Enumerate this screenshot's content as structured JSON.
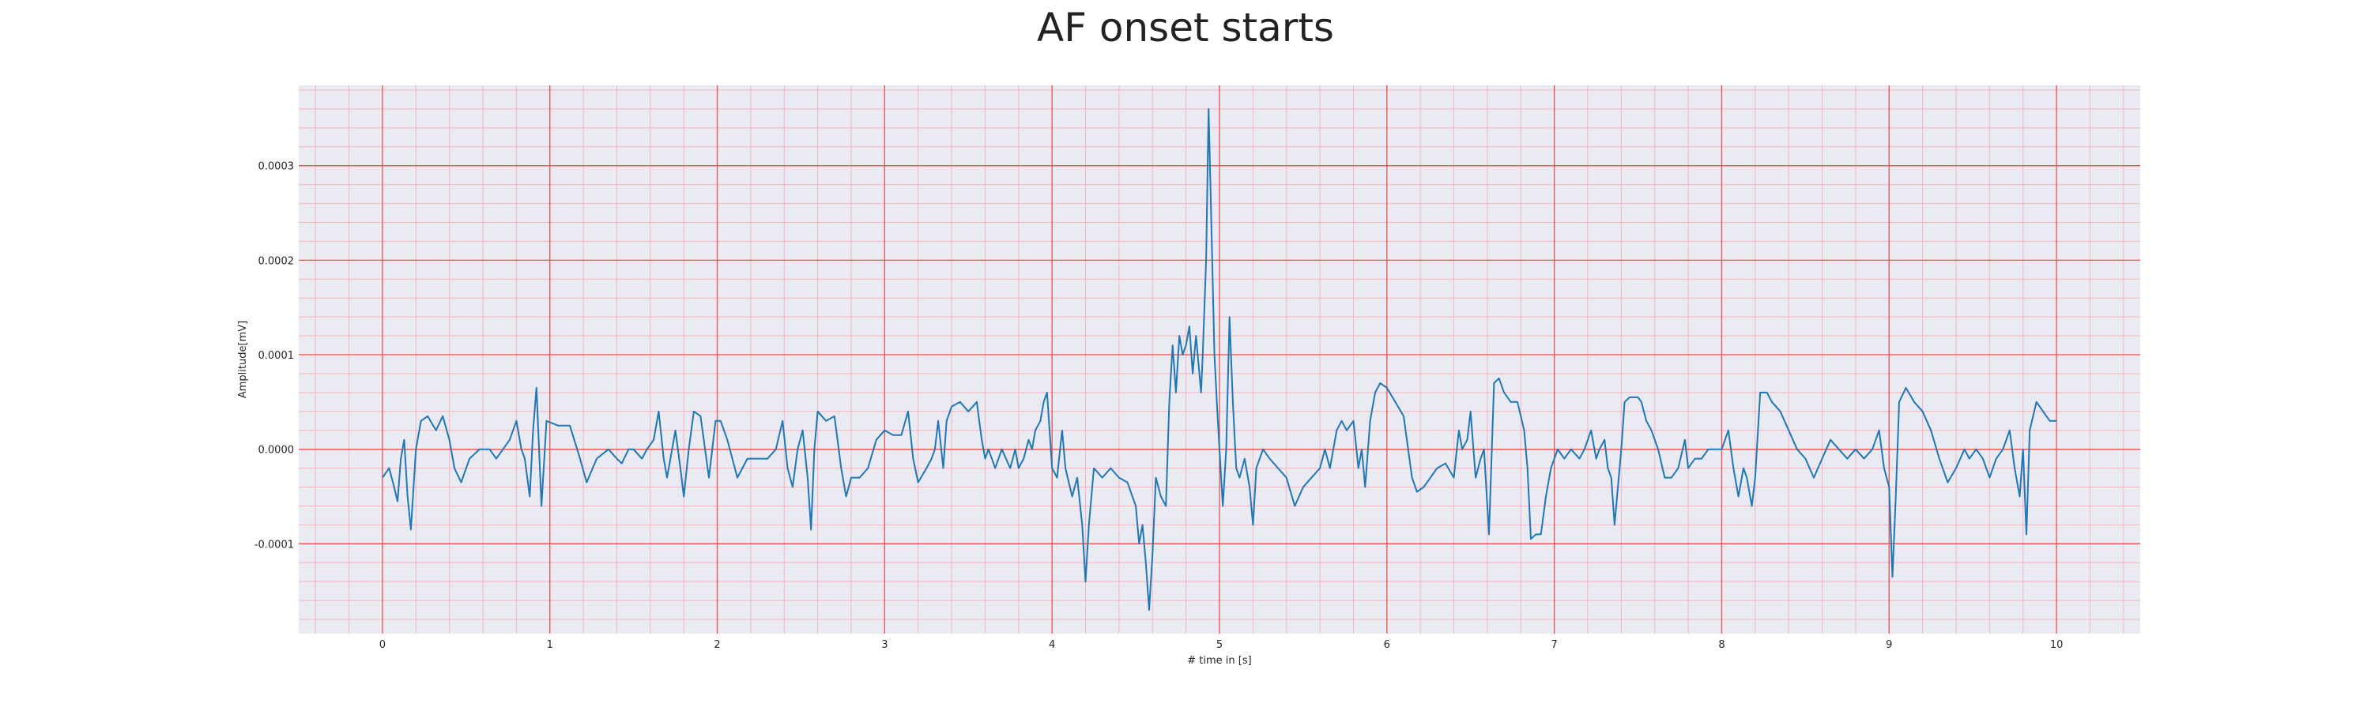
{
  "chart_data": {
    "type": "line",
    "title": "AF onset starts",
    "xlabel": "# time in [s]",
    "ylabel": "Amplitude[mV]",
    "xlim": [
      -0.5,
      10.5
    ],
    "ylim": [
      -0.000195,
      0.000385
    ],
    "xticks": [
      0,
      1,
      2,
      3,
      4,
      5,
      6,
      7,
      8,
      9,
      10
    ],
    "xtick_labels": [
      "0",
      "1",
      "2",
      "3",
      "4",
      "5",
      "6",
      "7",
      "8",
      "9",
      "10"
    ],
    "yticks": [
      -0.0001,
      0.0,
      0.0001,
      0.0002,
      0.0003
    ],
    "ytick_labels": [
      "-0.0001",
      "0.0000",
      "0.0001",
      "0.0002",
      "0.0003"
    ],
    "grid": true,
    "minor_grid": true,
    "colors": {
      "line": "#1f77b4",
      "major_grid": "#e8534f",
      "minor_grid": "#f2b5c0",
      "plot_background": "#eaeaf2"
    },
    "series": [
      {
        "points": [
          [
            0.0,
            -3e-05
          ],
          [
            0.04,
            -2e-05
          ],
          [
            0.07,
            -4e-05
          ],
          [
            0.09,
            -5.5e-05
          ],
          [
            0.11,
            -1e-05
          ],
          [
            0.13,
            1e-05
          ],
          [
            0.15,
            -5e-05
          ],
          [
            0.17,
            -8.5e-05
          ],
          [
            0.2,
            0.0
          ],
          [
            0.23,
            3e-05
          ],
          [
            0.27,
            3.5e-05
          ],
          [
            0.32,
            2e-05
          ],
          [
            0.36,
            3.5e-05
          ],
          [
            0.4,
            1e-05
          ],
          [
            0.43,
            -2e-05
          ],
          [
            0.47,
            -3.5e-05
          ],
          [
            0.52,
            -1e-05
          ],
          [
            0.58,
            0.0
          ],
          [
            0.64,
            0.0
          ],
          [
            0.68,
            -1e-05
          ],
          [
            0.72,
            0.0
          ],
          [
            0.76,
            1e-05
          ],
          [
            0.8,
            3e-05
          ],
          [
            0.83,
            0.0
          ],
          [
            0.85,
            -1e-05
          ],
          [
            0.88,
            -5e-05
          ],
          [
            0.9,
            2e-05
          ],
          [
            0.92,
            6.5e-05
          ],
          [
            0.95,
            -6e-05
          ],
          [
            0.98,
            3e-05
          ],
          [
            1.05,
            2.5e-05
          ],
          [
            1.12,
            2.5e-05
          ],
          [
            1.18,
            -1e-05
          ],
          [
            1.22,
            -3.5e-05
          ],
          [
            1.28,
            -1e-05
          ],
          [
            1.35,
            0.0
          ],
          [
            1.4,
            -1e-05
          ],
          [
            1.43,
            -1.5e-05
          ],
          [
            1.47,
            0.0
          ],
          [
            1.5,
            0.0
          ],
          [
            1.55,
            -1e-05
          ],
          [
            1.58,
            0.0
          ],
          [
            1.62,
            1e-05
          ],
          [
            1.65,
            4e-05
          ],
          [
            1.68,
            -1e-05
          ],
          [
            1.7,
            -3e-05
          ],
          [
            1.73,
            0.0
          ],
          [
            1.75,
            2e-05
          ],
          [
            1.78,
            -2e-05
          ],
          [
            1.8,
            -5e-05
          ],
          [
            1.83,
            0.0
          ],
          [
            1.86,
            4e-05
          ],
          [
            1.9,
            3.5e-05
          ],
          [
            1.95,
            -3e-05
          ],
          [
            1.99,
            3e-05
          ],
          [
            2.02,
            3e-05
          ],
          [
            2.06,
            1e-05
          ],
          [
            2.12,
            -3e-05
          ],
          [
            2.18,
            -1e-05
          ],
          [
            2.25,
            -1e-05
          ],
          [
            2.3,
            -1e-05
          ],
          [
            2.35,
            0.0
          ],
          [
            2.39,
            3e-05
          ],
          [
            2.42,
            -2e-05
          ],
          [
            2.45,
            -4e-05
          ],
          [
            2.48,
            0.0
          ],
          [
            2.51,
            2e-05
          ],
          [
            2.54,
            -3e-05
          ],
          [
            2.56,
            -8.5e-05
          ],
          [
            2.58,
            0.0
          ],
          [
            2.6,
            4e-05
          ],
          [
            2.65,
            3e-05
          ],
          [
            2.7,
            3.5e-05
          ],
          [
            2.74,
            -2e-05
          ],
          [
            2.77,
            -5e-05
          ],
          [
            2.8,
            -3e-05
          ],
          [
            2.85,
            -3e-05
          ],
          [
            2.9,
            -2e-05
          ],
          [
            2.95,
            1e-05
          ],
          [
            3.0,
            2e-05
          ],
          [
            3.05,
            1.5e-05
          ],
          [
            3.1,
            1.5e-05
          ],
          [
            3.14,
            4e-05
          ],
          [
            3.17,
            -1e-05
          ],
          [
            3.2,
            -3.5e-05
          ],
          [
            3.25,
            -2e-05
          ],
          [
            3.28,
            -1e-05
          ],
          [
            3.3,
            0.0
          ],
          [
            3.32,
            3e-05
          ],
          [
            3.35,
            -2e-05
          ],
          [
            3.37,
            3e-05
          ],
          [
            3.4,
            4.5e-05
          ],
          [
            3.45,
            5e-05
          ],
          [
            3.5,
            4e-05
          ],
          [
            3.55,
            5e-05
          ],
          [
            3.58,
            1e-05
          ],
          [
            3.6,
            -1e-05
          ],
          [
            3.62,
            0.0
          ],
          [
            3.66,
            -2e-05
          ],
          [
            3.7,
            0.0
          ],
          [
            3.75,
            -2e-05
          ],
          [
            3.78,
            0.0
          ],
          [
            3.8,
            -2e-05
          ],
          [
            3.83,
            -1e-05
          ],
          [
            3.86,
            1e-05
          ],
          [
            3.88,
            0.0
          ],
          [
            3.9,
            2e-05
          ],
          [
            3.93,
            3e-05
          ],
          [
            3.95,
            5e-05
          ],
          [
            3.97,
            6e-05
          ],
          [
            4.0,
            -2e-05
          ],
          [
            4.03,
            -3e-05
          ],
          [
            4.06,
            2e-05
          ],
          [
            4.08,
            -2e-05
          ],
          [
            4.12,
            -5e-05
          ],
          [
            4.15,
            -3e-05
          ],
          [
            4.18,
            -8e-05
          ],
          [
            4.2,
            -0.00014
          ],
          [
            4.22,
            -8e-05
          ],
          [
            4.25,
            -2e-05
          ],
          [
            4.3,
            -3e-05
          ],
          [
            4.35,
            -2e-05
          ],
          [
            4.4,
            -3e-05
          ],
          [
            4.45,
            -3.5e-05
          ],
          [
            4.5,
            -6e-05
          ],
          [
            4.52,
            -0.0001
          ],
          [
            4.54,
            -8e-05
          ],
          [
            4.56,
            -0.00012
          ],
          [
            4.58,
            -0.00017
          ],
          [
            4.6,
            -0.00011
          ],
          [
            4.62,
            -3e-05
          ],
          [
            4.65,
            -5e-05
          ],
          [
            4.68,
            -6e-05
          ],
          [
            4.7,
            5e-05
          ],
          [
            4.72,
            0.00011
          ],
          [
            4.74,
            6e-05
          ],
          [
            4.76,
            0.00012
          ],
          [
            4.78,
            0.0001
          ],
          [
            4.8,
            0.00011
          ],
          [
            4.82,
            0.00013
          ],
          [
            4.84,
            8e-05
          ],
          [
            4.86,
            0.00012
          ],
          [
            4.89,
            6e-05
          ],
          [
            4.9,
            0.0001
          ],
          [
            4.92,
            0.0002
          ],
          [
            4.935,
            0.00036
          ],
          [
            4.95,
            0.00025
          ],
          [
            4.97,
            0.0001
          ],
          [
            4.99,
            3e-05
          ],
          [
            5.02,
            -6e-05
          ],
          [
            5.04,
            0.0
          ],
          [
            5.06,
            0.00014
          ],
          [
            5.08,
            5e-05
          ],
          [
            5.1,
            -2e-05
          ],
          [
            5.12,
            -3e-05
          ],
          [
            5.15,
            -1e-05
          ],
          [
            5.18,
            -4e-05
          ],
          [
            5.2,
            -8e-05
          ],
          [
            5.22,
            -2e-05
          ],
          [
            5.26,
            0.0
          ],
          [
            5.3,
            -1e-05
          ],
          [
            5.35,
            -2e-05
          ],
          [
            5.4,
            -3e-05
          ],
          [
            5.45,
            -6e-05
          ],
          [
            5.5,
            -4e-05
          ],
          [
            5.55,
            -3e-05
          ],
          [
            5.6,
            -2e-05
          ],
          [
            5.63,
            0.0
          ],
          [
            5.66,
            -2e-05
          ],
          [
            5.7,
            2e-05
          ],
          [
            5.73,
            3e-05
          ],
          [
            5.76,
            2e-05
          ],
          [
            5.8,
            3e-05
          ],
          [
            5.83,
            -2e-05
          ],
          [
            5.85,
            0.0
          ],
          [
            5.87,
            -4e-05
          ],
          [
            5.9,
            3e-05
          ],
          [
            5.93,
            6e-05
          ],
          [
            5.96,
            7e-05
          ],
          [
            6.0,
            6.5e-05
          ],
          [
            6.05,
            5e-05
          ],
          [
            6.1,
            3.5e-05
          ],
          [
            6.15,
            -3e-05
          ],
          [
            6.18,
            -4.5e-05
          ],
          [
            6.22,
            -4e-05
          ],
          [
            6.26,
            -3e-05
          ],
          [
            6.3,
            -2e-05
          ],
          [
            6.35,
            -1.5e-05
          ],
          [
            6.4,
            -3e-05
          ],
          [
            6.43,
            2e-05
          ],
          [
            6.45,
            0.0
          ],
          [
            6.48,
            1e-05
          ],
          [
            6.5,
            4e-05
          ],
          [
            6.53,
            -3e-05
          ],
          [
            6.56,
            -1e-05
          ],
          [
            6.58,
            0.0
          ],
          [
            6.61,
            -9e-05
          ],
          [
            6.64,
            7e-05
          ],
          [
            6.67,
            7.5e-05
          ],
          [
            6.7,
            6e-05
          ],
          [
            6.74,
            5e-05
          ],
          [
            6.78,
            5e-05
          ],
          [
            6.82,
            2e-05
          ],
          [
            6.84,
            -2e-05
          ],
          [
            6.86,
            -9.5e-05
          ],
          [
            6.89,
            -9e-05
          ],
          [
            6.92,
            -9e-05
          ],
          [
            6.95,
            -5e-05
          ],
          [
            6.98,
            -2e-05
          ],
          [
            7.02,
            0.0
          ],
          [
            7.06,
            -1e-05
          ],
          [
            7.1,
            0.0
          ],
          [
            7.15,
            -1e-05
          ],
          [
            7.18,
            0.0
          ],
          [
            7.22,
            2e-05
          ],
          [
            7.25,
            -1e-05
          ],
          [
            7.27,
            0.0
          ],
          [
            7.3,
            1e-05
          ],
          [
            7.32,
            -2e-05
          ],
          [
            7.34,
            -3e-05
          ],
          [
            7.36,
            -8e-05
          ],
          [
            7.38,
            -4e-05
          ],
          [
            7.4,
            0.0
          ],
          [
            7.42,
            5e-05
          ],
          [
            7.45,
            5.5e-05
          ],
          [
            7.5,
            5.5e-05
          ],
          [
            7.52,
            5e-05
          ],
          [
            7.55,
            3e-05
          ],
          [
            7.58,
            2e-05
          ],
          [
            7.62,
            0.0
          ],
          [
            7.66,
            -3e-05
          ],
          [
            7.7,
            -3e-05
          ],
          [
            7.74,
            -2e-05
          ],
          [
            7.78,
            1e-05
          ],
          [
            7.8,
            -2e-05
          ],
          [
            7.84,
            -1e-05
          ],
          [
            7.88,
            -1e-05
          ],
          [
            7.92,
            0.0
          ],
          [
            7.96,
            0.0
          ],
          [
            8.0,
            0.0
          ],
          [
            8.04,
            2e-05
          ],
          [
            8.07,
            -2e-05
          ],
          [
            8.1,
            -5e-05
          ],
          [
            8.13,
            -2e-05
          ],
          [
            8.15,
            -3e-05
          ],
          [
            8.18,
            -6e-05
          ],
          [
            8.2,
            -3e-05
          ],
          [
            8.23,
            6e-05
          ],
          [
            8.27,
            6e-05
          ],
          [
            8.3,
            5e-05
          ],
          [
            8.35,
            4e-05
          ],
          [
            8.4,
            2e-05
          ],
          [
            8.45,
            0.0
          ],
          [
            8.5,
            -1e-05
          ],
          [
            8.55,
            -3e-05
          ],
          [
            8.6,
            -1e-05
          ],
          [
            8.65,
            1e-05
          ],
          [
            8.7,
            0.0
          ],
          [
            8.75,
            -1e-05
          ],
          [
            8.8,
            0.0
          ],
          [
            8.85,
            -1e-05
          ],
          [
            8.9,
            0.0
          ],
          [
            8.94,
            2e-05
          ],
          [
            8.97,
            -2e-05
          ],
          [
            9.0,
            -4e-05
          ],
          [
            9.02,
            -0.000135
          ],
          [
            9.04,
            -5e-05
          ],
          [
            9.06,
            5e-05
          ],
          [
            9.1,
            6.5e-05
          ],
          [
            9.15,
            5e-05
          ],
          [
            9.2,
            4e-05
          ],
          [
            9.25,
            2e-05
          ],
          [
            9.3,
            -1e-05
          ],
          [
            9.35,
            -3.5e-05
          ],
          [
            9.4,
            -2e-05
          ],
          [
            9.45,
            0.0
          ],
          [
            9.48,
            -1e-05
          ],
          [
            9.52,
            0.0
          ],
          [
            9.56,
            -1e-05
          ],
          [
            9.6,
            -3e-05
          ],
          [
            9.64,
            -1e-05
          ],
          [
            9.68,
            0.0
          ],
          [
            9.72,
            2e-05
          ],
          [
            9.75,
            -2e-05
          ],
          [
            9.78,
            -5e-05
          ],
          [
            9.8,
            0.0
          ],
          [
            9.82,
            -9e-05
          ],
          [
            9.84,
            2e-05
          ],
          [
            9.88,
            5e-05
          ],
          [
            9.92,
            4e-05
          ],
          [
            9.96,
            3e-05
          ],
          [
            10.0,
            3e-05
          ]
        ]
      }
    ]
  }
}
